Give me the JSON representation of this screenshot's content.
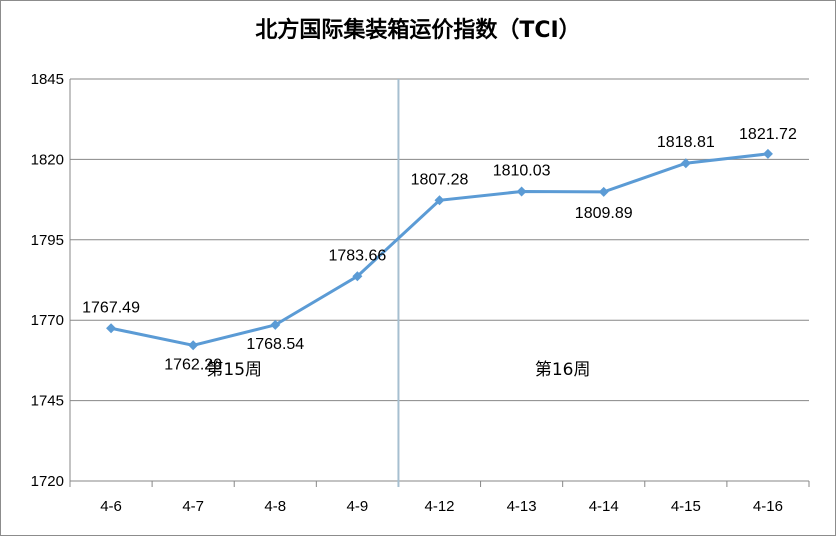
{
  "chart_data": {
    "type": "line",
    "title": "北方国际集装箱运价指数（TCI）",
    "categories": [
      "4-6",
      "4-7",
      "4-8",
      "4-9",
      "4-12",
      "4-13",
      "4-14",
      "4-15",
      "4-16"
    ],
    "series": [
      {
        "values": [
          1767.49,
          1762.2,
          1768.54,
          1783.66,
          1807.28,
          1810.03,
          1809.89,
          1818.81,
          1821.72
        ],
        "labels": [
          "1767.49",
          "1762.20",
          "1768.54",
          "1783.66",
          "1807.28",
          "1810.03",
          "1809.89",
          "1818.81",
          "1821.72"
        ],
        "color": "#5b9bd5"
      }
    ],
    "ylim": [
      1720,
      1845
    ],
    "yticks": [
      "1720",
      "1745",
      "1770",
      "1795",
      "1820",
      "1845"
    ],
    "grid": true,
    "annotations": [
      "第15周",
      "第16周"
    ],
    "week_divider_between": [
      "4-9",
      "4-12"
    ]
  }
}
